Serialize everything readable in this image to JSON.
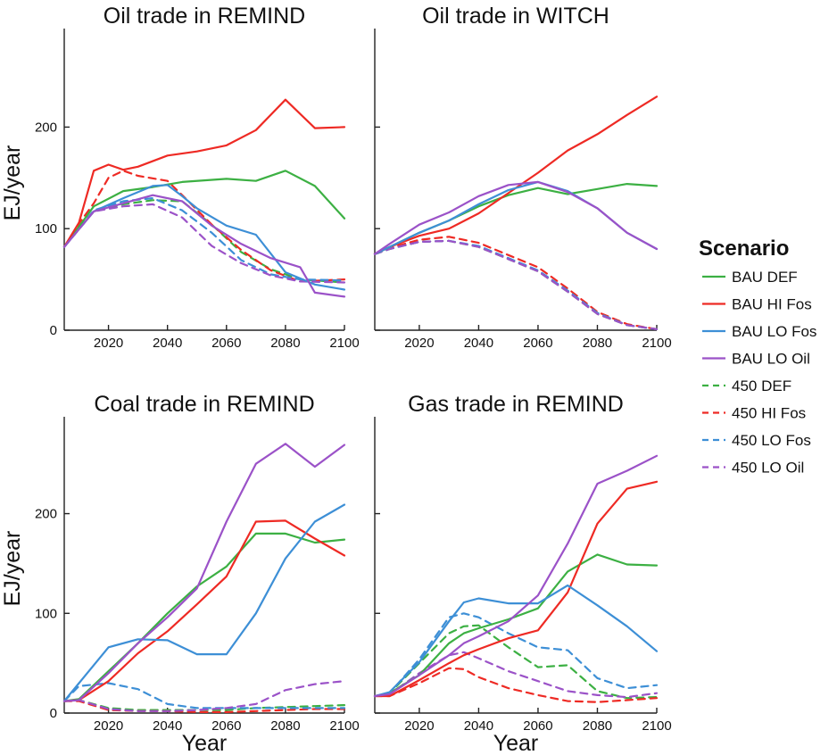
{
  "legend": {
    "title": "Scenario",
    "entries": [
      {
        "name": "BAU DEF",
        "color": "#3cb043",
        "dash": "solid"
      },
      {
        "name": "BAU HI Fos",
        "color": "#ee2a24",
        "dash": "solid"
      },
      {
        "name": "BAU LO Fos",
        "color": "#3d8fd6",
        "dash": "solid"
      },
      {
        "name": "BAU LO Oil",
        "color": "#9b52c8",
        "dash": "solid"
      },
      {
        "name": "450 DEF",
        "color": "#3cb043",
        "dash": "dashed"
      },
      {
        "name": "450 HI Fos",
        "color": "#ee2a24",
        "dash": "dashed"
      },
      {
        "name": "450 LO Fos",
        "color": "#3d8fd6",
        "dash": "dashed"
      },
      {
        "name": "450 LO Oil",
        "color": "#9b52c8",
        "dash": "dashed"
      }
    ]
  },
  "chart_data": [
    {
      "type": "line",
      "title": "Oil trade in REMIND",
      "xlabel": "",
      "ylabel": "EJ/year",
      "xlim": [
        2005,
        2100
      ],
      "ylim": [
        0,
        290
      ],
      "xticks": [
        2020,
        2040,
        2060,
        2080,
        2100
      ],
      "yticks": [
        0,
        100,
        200
      ],
      "series": [
        {
          "name": "BAU DEF",
          "x": [
            2005,
            2015,
            2025,
            2035,
            2045,
            2060,
            2070,
            2080,
            2090,
            2100
          ],
          "y": [
            82,
            122,
            137,
            141,
            146,
            149,
            147,
            157,
            142,
            110
          ]
        },
        {
          "name": "BAU HI Fos",
          "x": [
            2005,
            2010,
            2015,
            2020,
            2025,
            2030,
            2040,
            2050,
            2060,
            2070,
            2080,
            2090,
            2100
          ],
          "y": [
            82,
            106,
            157,
            163,
            158,
            161,
            172,
            176,
            182,
            197,
            227,
            199,
            200
          ]
        },
        {
          "name": "BAU LO Fos",
          "x": [
            2005,
            2015,
            2025,
            2035,
            2040,
            2045,
            2050,
            2060,
            2070,
            2080,
            2090,
            2100
          ],
          "y": [
            82,
            117,
            130,
            142,
            143,
            132,
            120,
            103,
            94,
            57,
            45,
            40
          ]
        },
        {
          "name": "BAU LO Oil",
          "x": [
            2005,
            2015,
            2025,
            2035,
            2045,
            2055,
            2065,
            2075,
            2085,
            2090,
            2100
          ],
          "y": [
            82,
            117,
            125,
            133,
            127,
            103,
            85,
            71,
            62,
            37,
            33
          ]
        },
        {
          "name": "450 DEF",
          "x": [
            2005,
            2015,
            2025,
            2035,
            2045,
            2055,
            2065,
            2075,
            2085,
            2100
          ],
          "y": [
            82,
            117,
            124,
            128,
            127,
            104,
            77,
            60,
            50,
            47
          ]
        },
        {
          "name": "450 HI Fos",
          "x": [
            2005,
            2010,
            2015,
            2020,
            2025,
            2030,
            2040,
            2045,
            2055,
            2065,
            2075,
            2085,
            2100
          ],
          "y": [
            82,
            105,
            125,
            150,
            157,
            152,
            147,
            133,
            104,
            79,
            59,
            48,
            50
          ]
        },
        {
          "name": "450 LO Fos",
          "x": [
            2005,
            2015,
            2025,
            2035,
            2045,
            2055,
            2065,
            2075,
            2085,
            2100
          ],
          "y": [
            82,
            118,
            127,
            130,
            118,
            96,
            69,
            55,
            50,
            49
          ]
        },
        {
          "name": "450 LO Oil",
          "x": [
            2005,
            2015,
            2025,
            2035,
            2045,
            2055,
            2065,
            2075,
            2085,
            2100
          ],
          "y": [
            82,
            117,
            122,
            124,
            111,
            83,
            66,
            54,
            48,
            47
          ]
        }
      ]
    },
    {
      "type": "line",
      "title": "Oil trade in WITCH",
      "xlabel": "",
      "ylabel": "",
      "xlim": [
        2005,
        2100
      ],
      "ylim": [
        0,
        290
      ],
      "xticks": [
        2020,
        2040,
        2060,
        2080,
        2100
      ],
      "yticks": [
        0,
        100,
        200
      ],
      "series": [
        {
          "name": "BAU DEF",
          "x": [
            2005,
            2010,
            2020,
            2030,
            2040,
            2050,
            2060,
            2070,
            2080,
            2090,
            2100
          ],
          "y": [
            75,
            82,
            96,
            108,
            122,
            133,
            140,
            134,
            139,
            144,
            142
          ]
        },
        {
          "name": "BAU HI Fos",
          "x": [
            2005,
            2010,
            2020,
            2030,
            2040,
            2050,
            2060,
            2070,
            2080,
            2090,
            2100
          ],
          "y": [
            75,
            82,
            93,
            100,
            115,
            135,
            155,
            177,
            193,
            212,
            230
          ]
        },
        {
          "name": "BAU LO Fos",
          "x": [
            2005,
            2010,
            2020,
            2030,
            2040,
            2050,
            2060,
            2070,
            2080,
            2090,
            2100
          ],
          "y": [
            75,
            82,
            96,
            108,
            124,
            138,
            146,
            137,
            120,
            96,
            80
          ]
        },
        {
          "name": "BAU LO Oil",
          "x": [
            2005,
            2010,
            2020,
            2030,
            2040,
            2050,
            2060,
            2070,
            2080,
            2090,
            2100
          ],
          "y": [
            75,
            85,
            104,
            116,
            132,
            143,
            146,
            136,
            120,
            96,
            80
          ]
        },
        {
          "name": "450 DEF",
          "x": [
            2005,
            2010,
            2020,
            2030,
            2040,
            2050,
            2060,
            2070,
            2080,
            2090,
            2100
          ],
          "y": [
            75,
            80,
            87,
            88,
            82,
            70,
            58,
            38,
            16,
            5,
            1
          ]
        },
        {
          "name": "450 HI Fos",
          "x": [
            2005,
            2010,
            2020,
            2030,
            2040,
            2050,
            2060,
            2070,
            2080,
            2090,
            2100
          ],
          "y": [
            75,
            81,
            89,
            92,
            86,
            74,
            62,
            41,
            18,
            6,
            1
          ]
        },
        {
          "name": "450 LO Fos",
          "x": [
            2005,
            2010,
            2020,
            2030,
            2040,
            2050,
            2060,
            2070,
            2080,
            2090,
            2100
          ],
          "y": [
            75,
            80,
            87,
            88,
            83,
            71,
            59,
            39,
            17,
            5,
            1
          ]
        },
        {
          "name": "450 LO Oil",
          "x": [
            2005,
            2010,
            2020,
            2030,
            2040,
            2050,
            2060,
            2070,
            2080,
            2090,
            2100
          ],
          "y": [
            75,
            80,
            87,
            88,
            82,
            70,
            58,
            38,
            16,
            5,
            1
          ]
        }
      ]
    },
    {
      "type": "line",
      "title": "Coal trade in REMIND",
      "xlabel": "Year",
      "ylabel": "EJ/year",
      "xlim": [
        2005,
        2100
      ],
      "ylim": [
        0,
        290
      ],
      "xticks": [
        2020,
        2040,
        2060,
        2080,
        2100
      ],
      "yticks": [
        0,
        100,
        200
      ],
      "series": [
        {
          "name": "BAU DEF",
          "x": [
            2005,
            2010,
            2020,
            2030,
            2040,
            2050,
            2060,
            2070,
            2080,
            2090,
            2100
          ],
          "y": [
            12,
            14,
            42,
            70,
            100,
            127,
            147,
            180,
            180,
            171,
            174
          ]
        },
        {
          "name": "BAU HI Fos",
          "x": [
            2005,
            2010,
            2020,
            2030,
            2040,
            2050,
            2060,
            2070,
            2080,
            2090,
            2100
          ],
          "y": [
            12,
            13,
            32,
            60,
            82,
            109,
            137,
            192,
            193,
            175,
            158
          ]
        },
        {
          "name": "BAU LO Fos",
          "x": [
            2005,
            2010,
            2020,
            2030,
            2040,
            2050,
            2060,
            2070,
            2080,
            2090,
            2100
          ],
          "y": [
            12,
            30,
            66,
            74,
            73,
            59,
            59,
            100,
            155,
            192,
            209
          ]
        },
        {
          "name": "BAU LO Oil",
          "x": [
            2005,
            2010,
            2020,
            2030,
            2040,
            2050,
            2060,
            2070,
            2080,
            2090,
            2100
          ],
          "y": [
            12,
            13,
            40,
            70,
            96,
            125,
            192,
            250,
            270,
            247,
            269
          ]
        },
        {
          "name": "450 DEF",
          "x": [
            2005,
            2010,
            2020,
            2030,
            2040,
            2050,
            2060,
            2070,
            2080,
            2090,
            2100
          ],
          "y": [
            12,
            13,
            5,
            3,
            3,
            3,
            3,
            5,
            6,
            7,
            8
          ]
        },
        {
          "name": "450 HI Fos",
          "x": [
            2005,
            2010,
            2020,
            2030,
            2040,
            2050,
            2060,
            2070,
            2080,
            2090,
            2100
          ],
          "y": [
            12,
            12,
            3,
            2,
            2,
            1,
            1,
            2,
            3,
            4,
            4
          ]
        },
        {
          "name": "450 LO Fos",
          "x": [
            2005,
            2010,
            2020,
            2030,
            2040,
            2050,
            2060,
            2070,
            2080,
            2090,
            2100
          ],
          "y": [
            12,
            27,
            30,
            24,
            9,
            5,
            5,
            5,
            5,
            5,
            5
          ]
        },
        {
          "name": "450 LO Oil",
          "x": [
            2005,
            2010,
            2020,
            2030,
            2040,
            2050,
            2060,
            2070,
            2080,
            2090,
            2100
          ],
          "y": [
            12,
            13,
            4,
            2,
            2,
            3,
            5,
            9,
            23,
            29,
            32
          ]
        }
      ]
    },
    {
      "type": "line",
      "title": "Gas trade in REMIND",
      "xlabel": "Year",
      "ylabel": "",
      "xlim": [
        2005,
        2100
      ],
      "ylim": [
        0,
        290
      ],
      "xticks": [
        2020,
        2040,
        2060,
        2080,
        2100
      ],
      "yticks": [
        0,
        100,
        200
      ],
      "series": [
        {
          "name": "BAU DEF",
          "x": [
            2005,
            2010,
            2020,
            2030,
            2035,
            2040,
            2050,
            2060,
            2070,
            2080,
            2090,
            2100
          ],
          "y": [
            17,
            20,
            38,
            70,
            80,
            85,
            94,
            105,
            142,
            159,
            149,
            148
          ]
        },
        {
          "name": "BAU HI Fos",
          "x": [
            2005,
            2010,
            2020,
            2030,
            2035,
            2040,
            2050,
            2060,
            2070,
            2080,
            2090,
            2100
          ],
          "y": [
            17,
            17,
            33,
            50,
            58,
            64,
            75,
            83,
            121,
            190,
            225,
            232
          ]
        },
        {
          "name": "BAU LO Fos",
          "x": [
            2005,
            2010,
            2020,
            2030,
            2035,
            2040,
            2050,
            2060,
            2070,
            2080,
            2090,
            2100
          ],
          "y": [
            17,
            21,
            51,
            92,
            111,
            115,
            110,
            110,
            128,
            108,
            87,
            62
          ]
        },
        {
          "name": "BAU LO Oil",
          "x": [
            2005,
            2010,
            2020,
            2030,
            2035,
            2040,
            2050,
            2060,
            2070,
            2080,
            2090,
            2100
          ],
          "y": [
            17,
            19,
            38,
            58,
            70,
            77,
            92,
            118,
            170,
            230,
            243,
            258
          ]
        },
        {
          "name": "450 DEF",
          "x": [
            2005,
            2010,
            2020,
            2030,
            2035,
            2040,
            2050,
            2060,
            2070,
            2080,
            2090,
            2100
          ],
          "y": [
            17,
            20,
            50,
            80,
            87,
            88,
            66,
            46,
            48,
            22,
            15,
            16
          ]
        },
        {
          "name": "450 HI Fos",
          "x": [
            2005,
            2010,
            2020,
            2030,
            2035,
            2040,
            2050,
            2060,
            2070,
            2080,
            2090,
            2100
          ],
          "y": [
            17,
            17,
            30,
            45,
            44,
            36,
            25,
            18,
            12,
            11,
            13,
            15
          ]
        },
        {
          "name": "450 LO Fos",
          "x": [
            2005,
            2010,
            2020,
            2030,
            2035,
            2040,
            2050,
            2060,
            2070,
            2080,
            2090,
            2100
          ],
          "y": [
            17,
            20,
            54,
            96,
            100,
            96,
            80,
            66,
            63,
            35,
            25,
            28
          ]
        },
        {
          "name": "450 LO Oil",
          "x": [
            2005,
            2010,
            2020,
            2030,
            2035,
            2040,
            2050,
            2060,
            2070,
            2080,
            2090,
            2100
          ],
          "y": [
            17,
            19,
            40,
            58,
            61,
            55,
            42,
            32,
            22,
            18,
            16,
            20
          ]
        }
      ]
    }
  ]
}
